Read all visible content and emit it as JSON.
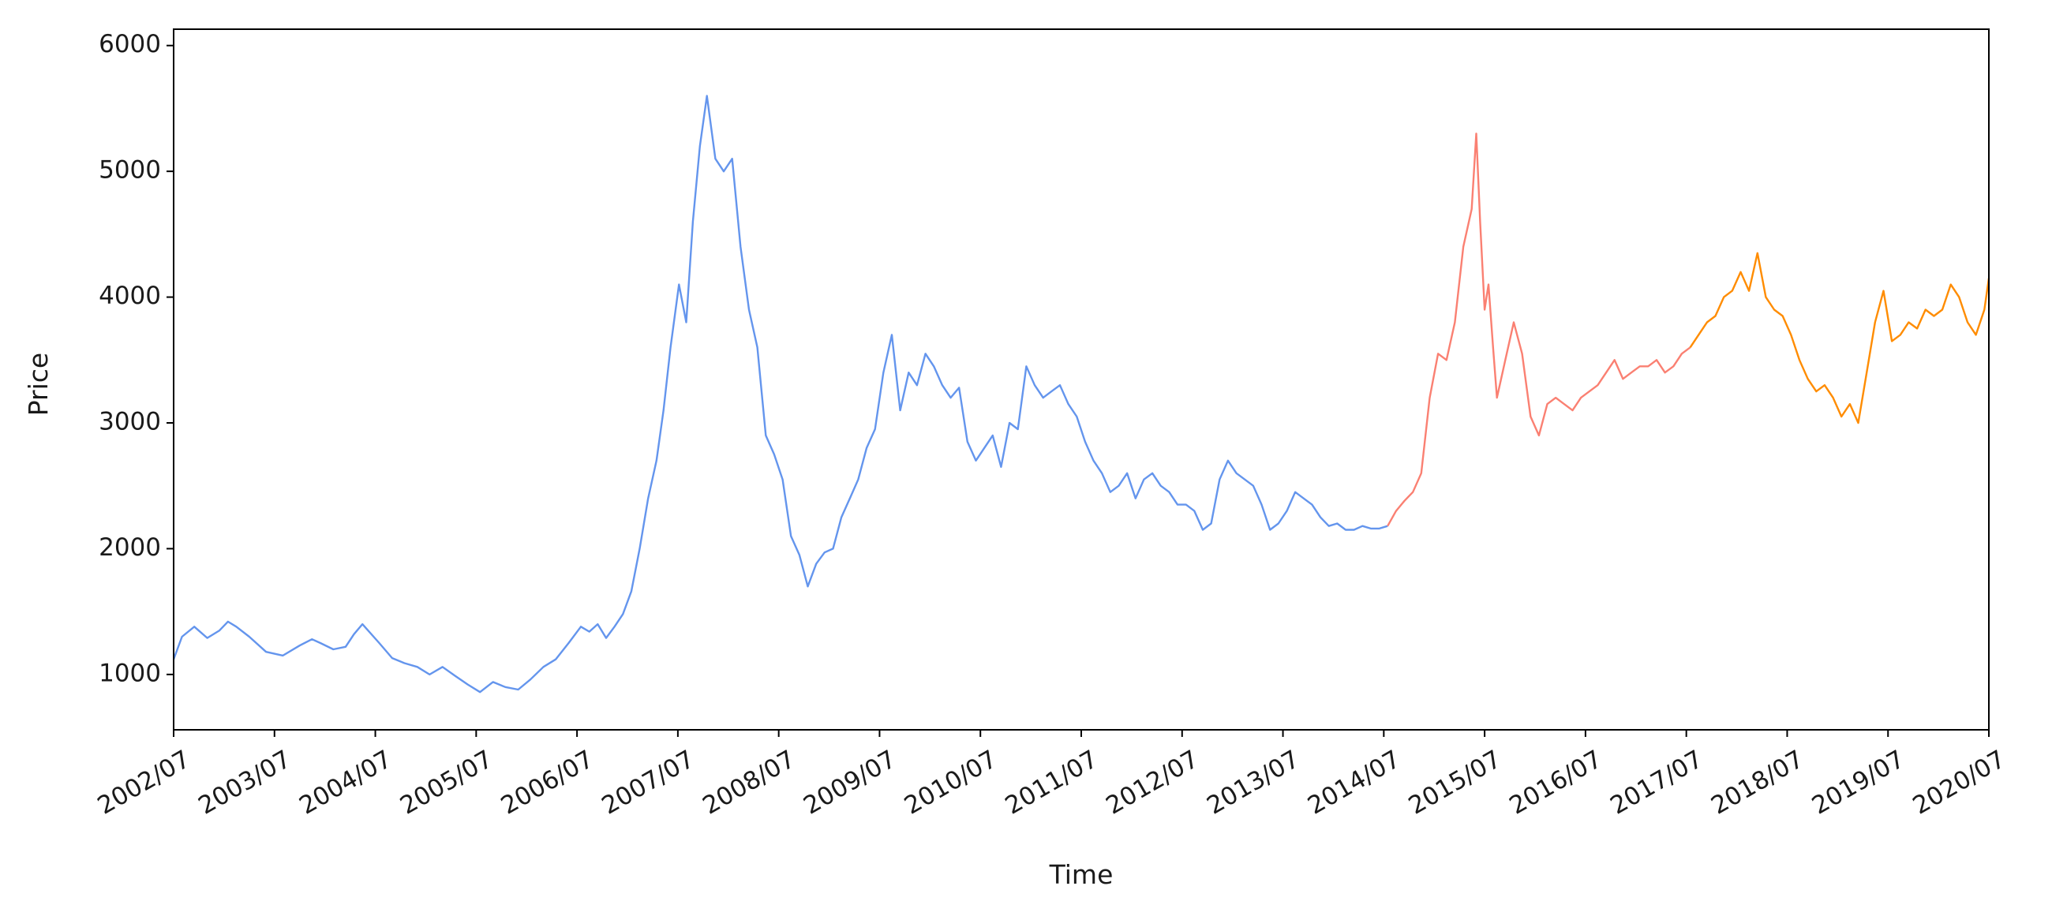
{
  "chart_data": {
    "type": "line",
    "title": "",
    "xlabel": "Time",
    "ylabel": "Price",
    "xlim": [
      "2002-07",
      "2020-07"
    ],
    "ylim": [
      560,
      6130
    ],
    "grid": false,
    "legend": "none",
    "x_tick_labels": [
      "2002/07",
      "2003/07",
      "2004/07",
      "2005/07",
      "2006/07",
      "2007/07",
      "2008/07",
      "2009/07",
      "2010/07",
      "2011/07",
      "2012/07",
      "2013/07",
      "2014/07",
      "2015/07",
      "2016/07",
      "2017/07",
      "2018/07",
      "2019/07",
      "2020/07"
    ],
    "y_ticks": [
      1000,
      2000,
      3000,
      4000,
      5000,
      6000
    ],
    "series": [
      {
        "color": "#6495ed",
        "x": [
          "2002-07-01",
          "2002-08-01",
          "2002-09-15",
          "2002-11-01",
          "2002-12-15",
          "2003-01-15",
          "2003-02-15",
          "2003-04-01",
          "2003-06-01",
          "2003-08-01",
          "2003-10-01",
          "2003-11-15",
          "2003-12-15",
          "2004-02-01",
          "2004-03-15",
          "2004-04-15",
          "2004-05-15",
          "2004-07-15",
          "2004-09-01",
          "2004-10-15",
          "2004-12-01",
          "2005-01-15",
          "2005-03-01",
          "2005-04-15",
          "2005-06-01",
          "2005-07-15",
          "2005-09-01",
          "2005-10-15",
          "2005-12-01",
          "2006-01-15",
          "2006-03-01",
          "2006-04-15",
          "2006-06-01",
          "2006-07-15",
          "2006-08-15",
          "2006-09-15",
          "2006-10-15",
          "2006-11-15",
          "2006-12-15",
          "2007-01-15",
          "2007-02-15",
          "2007-03-15",
          "2007-04-15",
          "2007-05-10",
          "2007-06-05",
          "2007-07-05",
          "2007-08-01",
          "2007-08-25",
          "2007-09-20",
          "2007-10-15",
          "2007-11-15",
          "2007-12-15",
          "2008-01-15",
          "2008-02-15",
          "2008-03-15",
          "2008-04-15",
          "2008-05-15",
          "2008-06-15",
          "2008-07-15",
          "2008-08-15",
          "2008-09-15",
          "2008-10-15",
          "2008-11-15",
          "2008-12-15",
          "2009-01-15",
          "2009-02-15",
          "2009-03-15",
          "2009-04-15",
          "2009-05-15",
          "2009-06-15",
          "2009-07-15",
          "2009-08-15",
          "2009-09-15",
          "2009-10-15",
          "2009-11-15",
          "2009-12-15",
          "2010-01-15",
          "2010-02-15",
          "2010-03-15",
          "2010-04-15",
          "2010-05-15",
          "2010-06-15",
          "2010-07-15",
          "2010-08-15",
          "2010-09-15",
          "2010-10-15",
          "2010-11-15",
          "2010-12-15",
          "2011-01-15",
          "2011-02-15",
          "2011-03-15",
          "2011-04-15",
          "2011-05-15",
          "2011-06-15",
          "2011-07-15",
          "2011-08-15",
          "2011-09-15",
          "2011-10-15",
          "2011-11-15",
          "2011-12-15",
          "2012-01-15",
          "2012-02-15",
          "2012-03-15",
          "2012-04-15",
          "2012-05-15",
          "2012-06-15",
          "2012-07-15",
          "2012-08-15",
          "2012-09-15",
          "2012-10-15",
          "2012-11-15",
          "2012-12-15",
          "2013-01-15",
          "2013-02-15",
          "2013-03-15",
          "2013-04-15",
          "2013-05-15",
          "2013-06-15",
          "2013-07-15",
          "2013-08-15",
          "2013-09-15",
          "2013-10-15",
          "2013-11-15",
          "2013-12-15",
          "2014-01-15",
          "2014-02-15",
          "2014-03-15",
          "2014-04-15",
          "2014-05-15",
          "2014-06-15",
          "2014-07-15"
        ],
        "y": [
          1120,
          1300,
          1380,
          1290,
          1350,
          1420,
          1380,
          1300,
          1180,
          1150,
          1230,
          1280,
          1250,
          1200,
          1220,
          1320,
          1400,
          1250,
          1130,
          1090,
          1060,
          1000,
          1060,
          990,
          920,
          860,
          940,
          900,
          880,
          960,
          1060,
          1120,
          1250,
          1380,
          1340,
          1400,
          1290,
          1380,
          1480,
          1660,
          2000,
          2400,
          2700,
          3100,
          3600,
          4100,
          3800,
          4600,
          5200,
          5600,
          5100,
          5000,
          5100,
          4400,
          3900,
          3600,
          2900,
          2750,
          2550,
          2100,
          1950,
          1700,
          1880,
          1970,
          2000,
          2250,
          2400,
          2550,
          2800,
          2950,
          3400,
          3700,
          3100,
          3400,
          3300,
          3550,
          3450,
          3300,
          3200,
          3280,
          2850,
          2700,
          2800,
          2900,
          2650,
          3000,
          2950,
          3450,
          3300,
          3200,
          3250,
          3300,
          3150,
          3050,
          2850,
          2700,
          2600,
          2450,
          2500,
          2600,
          2400,
          2550,
          2600,
          2500,
          2450,
          2350,
          2350,
          2300,
          2150,
          2200,
          2550,
          2700,
          2600,
          2550,
          2500,
          2350,
          2150,
          2200,
          2300,
          2450,
          2400,
          2350,
          2250,
          2180,
          2200,
          2150,
          2150,
          2180,
          2160,
          2160,
          2180
        ]
      },
      {
        "color": "#fa8072",
        "x": [
          "2014-07-15",
          "2014-08-15",
          "2014-09-15",
          "2014-10-15",
          "2014-11-15",
          "2014-12-15",
          "2015-01-15",
          "2015-02-15",
          "2015-03-15",
          "2015-04-15",
          "2015-05-15",
          "2015-06-01",
          "2015-06-15",
          "2015-07-01",
          "2015-07-15",
          "2015-08-01",
          "2015-08-15",
          "2015-09-15",
          "2015-10-15",
          "2015-11-15",
          "2015-12-15",
          "2016-01-15",
          "2016-02-15",
          "2016-03-15",
          "2016-04-15",
          "2016-05-15",
          "2016-06-15",
          "2016-07-15",
          "2016-08-15",
          "2016-09-15",
          "2016-10-15",
          "2016-11-15",
          "2016-12-15",
          "2017-01-15",
          "2017-02-15",
          "2017-03-15",
          "2017-04-15",
          "2017-05-15",
          "2017-06-15",
          "2017-07-15"
        ],
        "y": [
          2180,
          2300,
          2380,
          2450,
          2600,
          3200,
          3550,
          3500,
          3800,
          4400,
          4700,
          5300,
          4600,
          3900,
          4100,
          3600,
          3200,
          3500,
          3800,
          3550,
          3050,
          2900,
          3150,
          3200,
          3150,
          3100,
          3200,
          3250,
          3300,
          3400,
          3500,
          3350,
          3400,
          3450,
          3450,
          3500,
          3400,
          3450,
          3550,
          3600
        ]
      },
      {
        "color": "#ff8c00",
        "x": [
          "2017-07-15",
          "2017-08-15",
          "2017-09-15",
          "2017-10-15",
          "2017-11-15",
          "2017-12-15",
          "2018-01-15",
          "2018-02-15",
          "2018-03-15",
          "2018-04-15",
          "2018-05-15",
          "2018-06-15",
          "2018-07-15",
          "2018-08-15",
          "2018-09-15",
          "2018-10-15",
          "2018-11-15",
          "2018-12-15",
          "2019-01-15",
          "2019-02-15",
          "2019-03-15",
          "2019-04-15",
          "2019-05-15",
          "2019-06-15",
          "2019-07-15",
          "2019-08-15",
          "2019-09-15",
          "2019-10-15",
          "2019-11-15",
          "2019-12-15",
          "2020-01-15",
          "2020-02-15",
          "2020-03-15",
          "2020-04-15",
          "2020-05-15",
          "2020-06-15",
          "2020-07-01"
        ],
        "y": [
          3600,
          3700,
          3800,
          3850,
          4000,
          4050,
          4200,
          4050,
          4350,
          4000,
          3900,
          3850,
          3700,
          3500,
          3350,
          3250,
          3300,
          3200,
          3050,
          3150,
          3000,
          3400,
          3800,
          4050,
          3650,
          3700,
          3800,
          3750,
          3900,
          3850,
          3900,
          4100,
          4000,
          3800,
          3700,
          3900,
          4150
        ]
      }
    ]
  }
}
